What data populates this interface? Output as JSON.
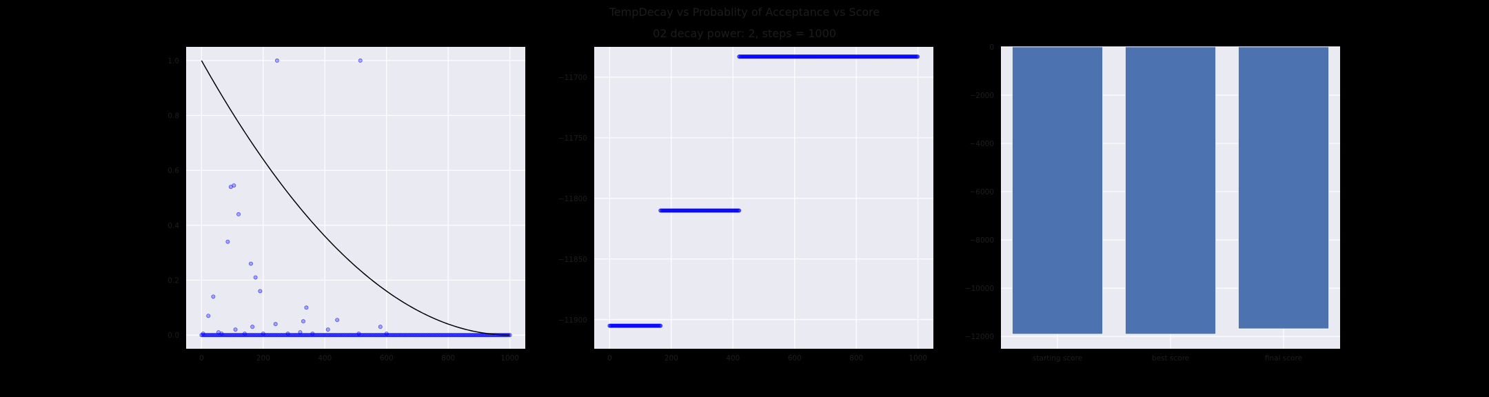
{
  "figure": {
    "title": "TempDecay vs Probablity of Acceptance vs Score",
    "subtitle": "02 decay power: 2, steps = 1000",
    "background": "#000000",
    "axes_face": "#eaeaf2",
    "grid_color": "#ffffff"
  },
  "chart_data": [
    {
      "type": "scatter",
      "title": "",
      "xlabel": "",
      "ylabel": "",
      "xlim": [
        -50,
        1050
      ],
      "ylim": [
        -0.05,
        1.05
      ],
      "xticks": [
        0,
        200,
        400,
        600,
        800,
        1000
      ],
      "yticks": [
        0.0,
        0.2,
        0.4,
        0.6,
        0.8,
        1.0
      ],
      "ytick_labels": [
        "0.0",
        "0.2",
        "0.4",
        "0.6",
        "0.8",
        "1.0"
      ],
      "grid": true,
      "series": [
        {
          "kind": "scatter",
          "color": "#0000ff",
          "baseline": {
            "x_from": 0,
            "x_to": 1000,
            "step": 4,
            "y": 0.0
          },
          "points": [
            [
              5,
              0.005
            ],
            [
              22,
              0.07
            ],
            [
              38,
              0.14
            ],
            [
              55,
              0.01
            ],
            [
              65,
              0.005
            ],
            [
              85,
              0.34
            ],
            [
              95,
              0.54
            ],
            [
              105,
              0.545
            ],
            [
              110,
              0.02
            ],
            [
              120,
              0.44
            ],
            [
              140,
              0.005
            ],
            [
              160,
              0.26
            ],
            [
              165,
              0.03
            ],
            [
              175,
              0.21
            ],
            [
              190,
              0.16
            ],
            [
              200,
              0.005
            ],
            [
              245,
              1.0
            ],
            [
              240,
              0.04
            ],
            [
              280,
              0.005
            ],
            [
              320,
              0.01
            ],
            [
              330,
              0.05
            ],
            [
              340,
              0.1
            ],
            [
              360,
              0.005
            ],
            [
              410,
              0.02
            ],
            [
              440,
              0.055
            ],
            [
              515,
              1.0
            ],
            [
              510,
              0.005
            ],
            [
              580,
              0.03
            ],
            [
              600,
              0.005
            ]
          ]
        },
        {
          "kind": "line",
          "color": "#000000",
          "formula": "(1 - x/1000)^2"
        }
      ]
    },
    {
      "type": "scatter",
      "title": "",
      "xlabel": "",
      "ylabel": "",
      "xlim": [
        -50,
        1050
      ],
      "ylim": [
        -11924,
        -11675
      ],
      "xticks": [
        0,
        200,
        400,
        600,
        800,
        1000
      ],
      "yticks": [
        -11900,
        -11850,
        -11800,
        -11750,
        -11700
      ],
      "ytick_labels": [
        "−11900",
        "−11850",
        "−11800",
        "−11750",
        "−11700"
      ],
      "grid": true,
      "series": [
        {
          "kind": "scatter",
          "color": "#0000ff",
          "segments": [
            {
              "x_from": 0,
              "x_to": 165,
              "y": -11905
            },
            {
              "x_from": 165,
              "x_to": 420,
              "y": -11810
            },
            {
              "x_from": 420,
              "x_to": 1000,
              "y": -11683
            }
          ]
        }
      ]
    },
    {
      "type": "bar",
      "title": "",
      "xlabel": "",
      "ylabel": "",
      "categories": [
        "starting score",
        "best score",
        "final score"
      ],
      "values": [
        -11905,
        -11905,
        -11683
      ],
      "ylim": [
        -12510,
        0
      ],
      "yticks": [
        0,
        -2000,
        -4000,
        -6000,
        -8000,
        -10000,
        -12000
      ],
      "ytick_labels": [
        "0",
        "−2000",
        "−4000",
        "−6000",
        "−8000",
        "−10000",
        "−12000"
      ],
      "grid": true,
      "color": "#4c72b0"
    }
  ]
}
